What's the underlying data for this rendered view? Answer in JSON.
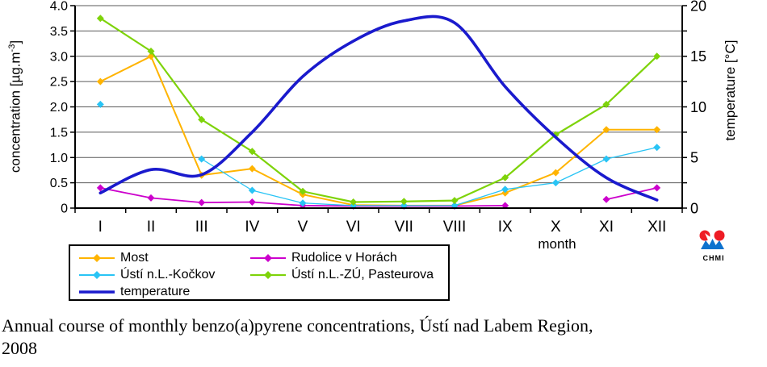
{
  "chart_data": {
    "type": "line",
    "categories": [
      "I",
      "II",
      "III",
      "IV",
      "V",
      "VI",
      "VII",
      "VIII",
      "IX",
      "X",
      "XI",
      "XII"
    ],
    "xlabel": "month",
    "grid": "horizontal",
    "y_left": {
      "title_pre": "concentration [µg.m",
      "title_sup": "-3",
      "title_post": "]",
      "ticks": [
        "4.0",
        "3.5",
        "3.0",
        "2.5",
        "2.0",
        "1.5",
        "1.0",
        "0.5",
        "0"
      ],
      "min": 0,
      "max": 4
    },
    "y_right": {
      "title": "temperature [°C]",
      "ticks": [
        "20",
        "15",
        "10",
        "5",
        "0"
      ],
      "min": 0,
      "max": 20
    },
    "series": [
      {
        "name": "Most",
        "color": "#FFB400",
        "marker": "diamond",
        "width": 2,
        "axis": "left",
        "values": [
          2.5,
          3.0,
          0.65,
          0.78,
          0.27,
          0.06,
          0.05,
          0.05,
          0.3,
          0.7,
          1.55,
          1.55
        ]
      },
      {
        "name": "Rudolice v Horách",
        "color": "#CC00CC",
        "marker": "diamond",
        "width": 1.8,
        "axis": "left",
        "values": [
          0.4,
          0.2,
          0.11,
          0.12,
          0.05,
          0.04,
          0.04,
          0.04,
          0.05,
          null,
          0.17,
          0.4
        ]
      },
      {
        "name": "Ústí n.L.-Kočkov",
        "color": "#29C4F5",
        "marker": "diamond",
        "width": 1.3,
        "axis": "left",
        "values": [
          2.05,
          null,
          0.97,
          0.35,
          0.1,
          0.05,
          0.05,
          0.05,
          0.37,
          0.5,
          0.97,
          1.2
        ]
      },
      {
        "name": "Ústí n.L.-ZÚ, Pasteurova",
        "color": "#7ED30A",
        "marker": "diamond",
        "width": 2.2,
        "axis": "left",
        "values": [
          3.75,
          3.1,
          1.75,
          1.12,
          0.33,
          0.12,
          0.13,
          0.15,
          0.6,
          1.45,
          2.05,
          3.0
        ]
      },
      {
        "name": "temperature",
        "color": "#1A1ACD",
        "marker": "none",
        "width": 3.6,
        "axis": "right",
        "smooth": true,
        "values": [
          1.5,
          3.8,
          3.3,
          7.5,
          13.0,
          16.5,
          18.5,
          18.3,
          12.0,
          7.0,
          3.0,
          0.8
        ]
      }
    ],
    "legend_position": "bottom-left",
    "gridline_color": "#5A5A5A"
  },
  "logo": {
    "text": "CHMI",
    "red": "#EE1C25",
    "blue": "#0E72CE"
  },
  "caption": {
    "line1": "Annual course of monthly benzo(a)pyrene concentrations, Ústí nad Labem Region,",
    "line2": "2008"
  }
}
